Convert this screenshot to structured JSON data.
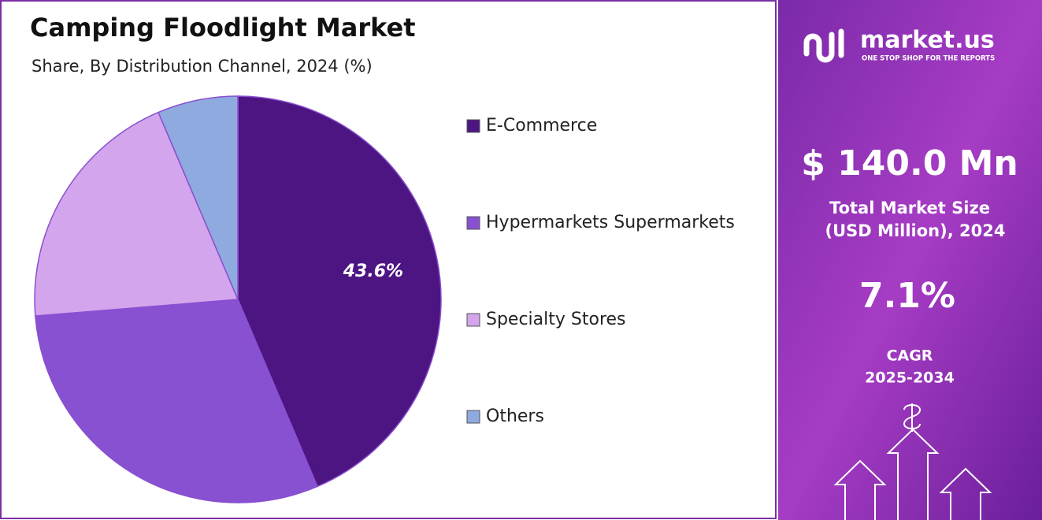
{
  "chart_data": {
    "type": "pie",
    "title": "Camping Floodlight Market",
    "subtitle": "Share, By Distribution Channel, 2024 (%)",
    "categories": [
      "E-Commerce",
      "Hypermarkets Supermarkets",
      "Specialty Stores",
      "Others"
    ],
    "values": [
      43.6,
      30.1,
      19.9,
      6.4
    ],
    "value_labels": [
      "43.6%",
      null,
      null,
      null
    ],
    "colors": [
      "#4d1582",
      "#8851d1",
      "#d3a5ec",
      "#8eaadf"
    ],
    "legend": "right"
  },
  "panel": {
    "brand": "market.us",
    "tagline": "ONE STOP SHOP FOR THE REPORTS",
    "market_size": "$ 140.0 Mn",
    "market_size_label": [
      "Total Market Size",
      "(USD Million), 2024"
    ],
    "cagr": "7.1%",
    "cagr_label": "CAGR",
    "cagr_period": "2025-2034"
  }
}
